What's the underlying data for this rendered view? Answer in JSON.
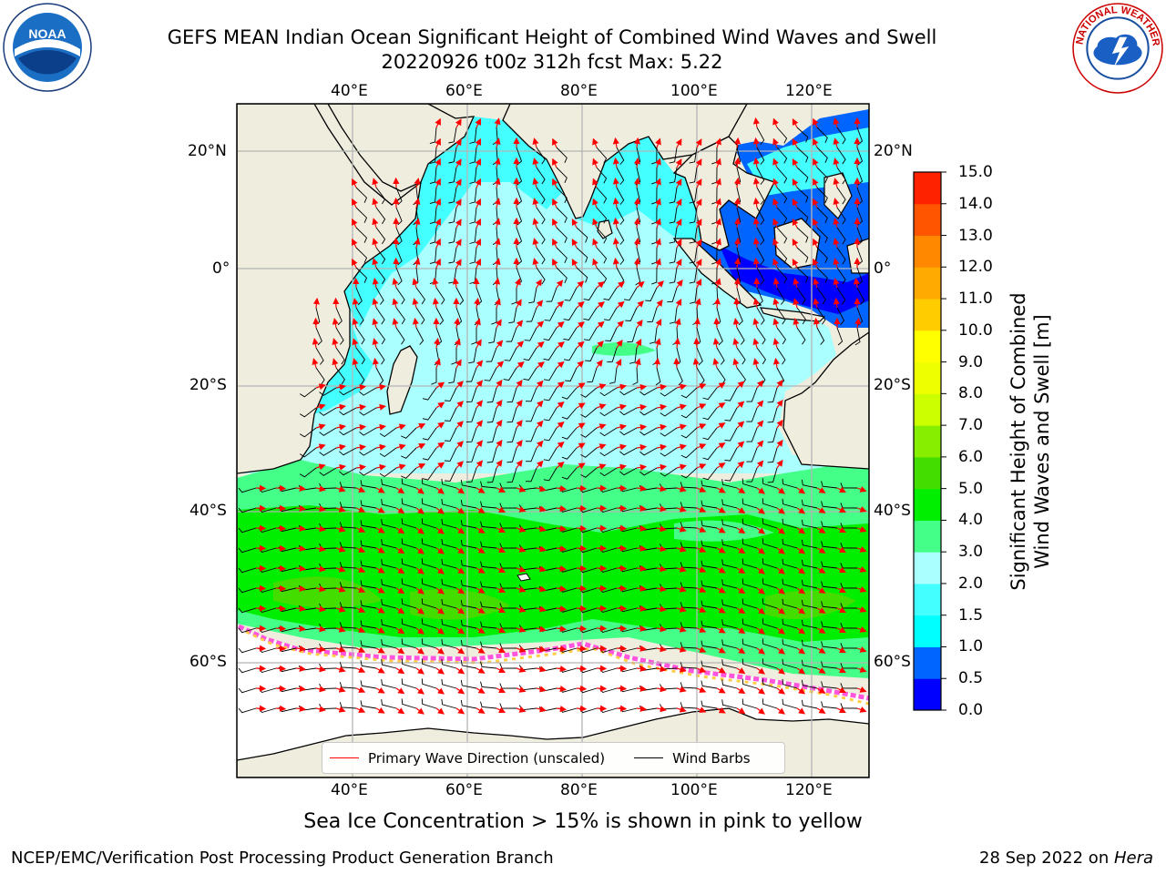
{
  "header": {
    "title_line1": "GEFS MEAN Indian Ocean Significant Height of Combined Wind Waves and Swell",
    "title_line2": "20220926 t00z 312h fcst   Max: 5.22"
  },
  "logos": {
    "left": "noaa-logo",
    "right": "nws-logo",
    "left_text": "NOAA",
    "right_text": "NATIONAL WEATHER SERVICE"
  },
  "map": {
    "lon_ticks": [
      "40°E",
      "60°E",
      "80°E",
      "100°E",
      "120°E"
    ],
    "lat_ticks": [
      "20°N",
      "0°",
      "20°S",
      "40°S",
      "60°S"
    ],
    "lon_range": [
      20,
      130
    ],
    "lat_range": [
      -75,
      27
    ],
    "colors": {
      "land": "#efedde",
      "sea_ice_region": "#ffffff",
      "wave_arrows": "#ff0000",
      "wind_barbs": "#000000"
    }
  },
  "legend": {
    "primary_wave_label": "Primary Wave Direction (unscaled)",
    "primary_wave_color": "#ff0000",
    "wind_barbs_label": "Wind Barbs",
    "wind_barbs_color": "#000000"
  },
  "colorbar": {
    "title_line1": "Significant Height of Combined",
    "title_line2": "Wind Waves and Swell [m]",
    "levels": [
      "0.0",
      "0.5",
      "1.0",
      "1.5",
      "2.0",
      "3.0",
      "4.0",
      "5.0",
      "6.0",
      "7.0",
      "8.0",
      "9.0",
      "10.0",
      "11.0",
      "12.0",
      "13.0",
      "14.0",
      "15.0"
    ],
    "colors": [
      "#0000ff",
      "#0064ff",
      "#00ffff",
      "#44ffff",
      "#aaffff",
      "#44ff88",
      "#00ee00",
      "#44dd00",
      "#88ee00",
      "#ccff00",
      "#eeff00",
      "#ffff00",
      "#ffcc00",
      "#ffaa00",
      "#ff8800",
      "#ff5500",
      "#ff2200"
    ]
  },
  "subtitle": "Sea Ice Concentration > 15% is shown in pink to yellow",
  "footer": {
    "left": "NCEP/EMC/Verification Post Processing Product Generation Branch",
    "right_date": "28 Sep 2022 on ",
    "right_host": "Hera"
  }
}
